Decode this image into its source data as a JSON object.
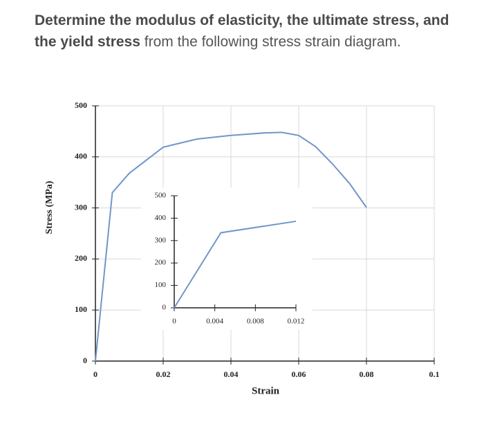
{
  "question": {
    "bold": "Determine the modulus of elasticity, the ultimate stress, and the yield stress",
    "rest": " from the following stress strain diagram."
  },
  "chart_data": [
    {
      "type": "line",
      "xlabel": "Strain",
      "ylabel": "Stress (MPa)",
      "x": [
        0,
        0.005,
        0.01,
        0.02,
        0.03,
        0.04,
        0.05,
        0.055,
        0.06,
        0.065,
        0.07,
        0.075,
        0.08
      ],
      "series": [
        {
          "name": "stress",
          "color": "#7096c8",
          "values": [
            0,
            330,
            368,
            419,
            435,
            442,
            447,
            448,
            442,
            420,
            386,
            348,
            301
          ]
        }
      ],
      "xlim": [
        0,
        0.1
      ],
      "xticks": [
        0,
        0.02,
        0.04,
        0.06,
        0.08,
        0.1
      ],
      "ylim": [
        0,
        500
      ],
      "yticks": [
        0,
        100,
        200,
        300,
        400,
        500
      ],
      "grid": true
    },
    {
      "type": "line",
      "x": [
        0,
        0.0046,
        0.012
      ],
      "series": [
        {
          "name": "inset",
          "color": "#7096c8",
          "values": [
            0,
            335,
            386
          ]
        }
      ],
      "xlim": [
        0,
        0.012
      ],
      "xticks": [
        0,
        0.004,
        0.008,
        0.012
      ],
      "ylim": [
        0,
        500
      ],
      "yticks": [
        0,
        100,
        200,
        300,
        400,
        500
      ],
      "grid": false
    }
  ]
}
